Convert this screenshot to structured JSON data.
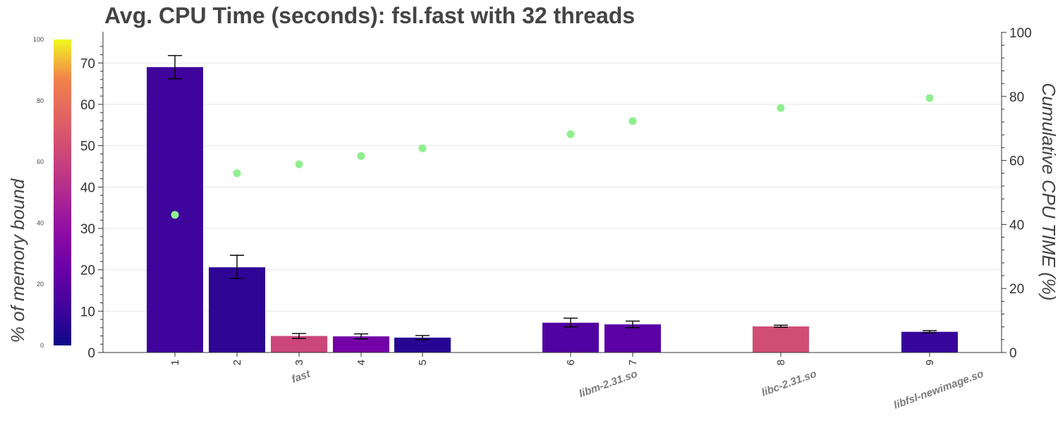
{
  "chart_data": {
    "type": "bar",
    "title": "Avg. CPU Time (seconds): fsl.fast with 32 threads",
    "categories": [
      "1",
      "2",
      "3",
      "4",
      "5",
      "6",
      "7",
      "8",
      "9"
    ],
    "values": [
      69,
      20.6,
      4.0,
      3.9,
      3.6,
      7.2,
      6.8,
      6.3,
      5.0
    ],
    "errors": [
      [
        66.2,
        71.8
      ],
      [
        17.9,
        23.5
      ],
      [
        3.4,
        4.6
      ],
      [
        3.3,
        4.5
      ],
      [
        3.1,
        4.1
      ],
      [
        6.2,
        8.3
      ],
      [
        6.0,
        7.6
      ],
      [
        6.1,
        6.6
      ],
      [
        4.8,
        5.3
      ]
    ],
    "memory_bound_pct": [
      12,
      8,
      62,
      28,
      6,
      18,
      20,
      65,
      10
    ],
    "cumulative_pct": [
      43,
      56,
      58.8,
      61.4,
      63.8,
      68.2,
      72.3,
      76.4,
      79.5
    ],
    "groups": [
      {
        "label": "fast",
        "categories": [
          "1",
          "2",
          "3",
          "4",
          "5"
        ]
      },
      {
        "label": "libm-2.31.so",
        "categories": [
          "6",
          "7"
        ]
      },
      {
        "label": "libc-2.31.so",
        "categories": [
          "8"
        ]
      },
      {
        "label": "libfsl-newimage.so",
        "categories": [
          "9"
        ]
      }
    ],
    "ylabel": "",
    "ylim": [
      0,
      75
    ],
    "yticks": [
      "0",
      "10",
      "20",
      "30",
      "40",
      "50",
      "60",
      "70"
    ],
    "y2label": "Cumulative CPU TIME (%)",
    "y2lim": [
      0,
      100
    ],
    "y2ticks": [
      "0",
      "20",
      "40",
      "60",
      "80",
      "100"
    ],
    "colorbar": {
      "label": "% of memory bound",
      "range": [
        0,
        100
      ],
      "ticks": [
        "0",
        "20",
        "40",
        "60",
        "80",
        "100"
      ],
      "colormap": "plasma"
    },
    "marker_color": "#90ee90",
    "grid": true
  }
}
